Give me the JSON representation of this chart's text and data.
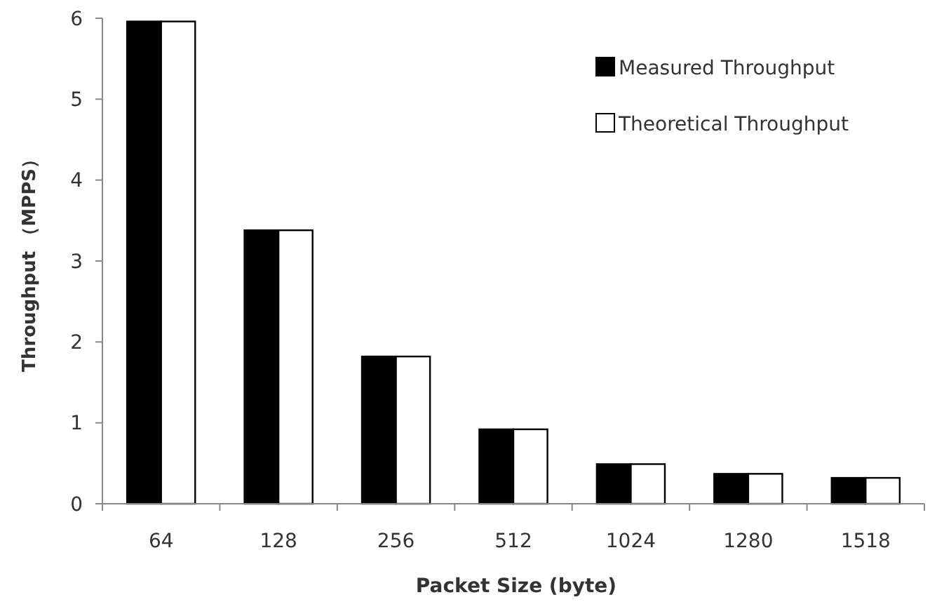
{
  "chart_data": {
    "type": "bar",
    "xlabel": "Packet Size (byte)",
    "ylabel": "Throughput （MPPS）",
    "categories": [
      "64",
      "128",
      "256",
      "512",
      "1024",
      "1280",
      "1518"
    ],
    "series": [
      {
        "name": "Measured Throughput",
        "color": "#000000",
        "values": [
          5.96,
          3.38,
          1.82,
          0.92,
          0.49,
          0.37,
          0.32
        ]
      },
      {
        "name": "Theoretical Throughput",
        "color": "#ffffff",
        "values": [
          5.96,
          3.38,
          1.82,
          0.92,
          0.49,
          0.37,
          0.32
        ]
      }
    ],
    "ylim": [
      0,
      6
    ],
    "yticks": [
      0,
      1,
      2,
      3,
      4,
      5,
      6
    ],
    "legend": "top right"
  }
}
